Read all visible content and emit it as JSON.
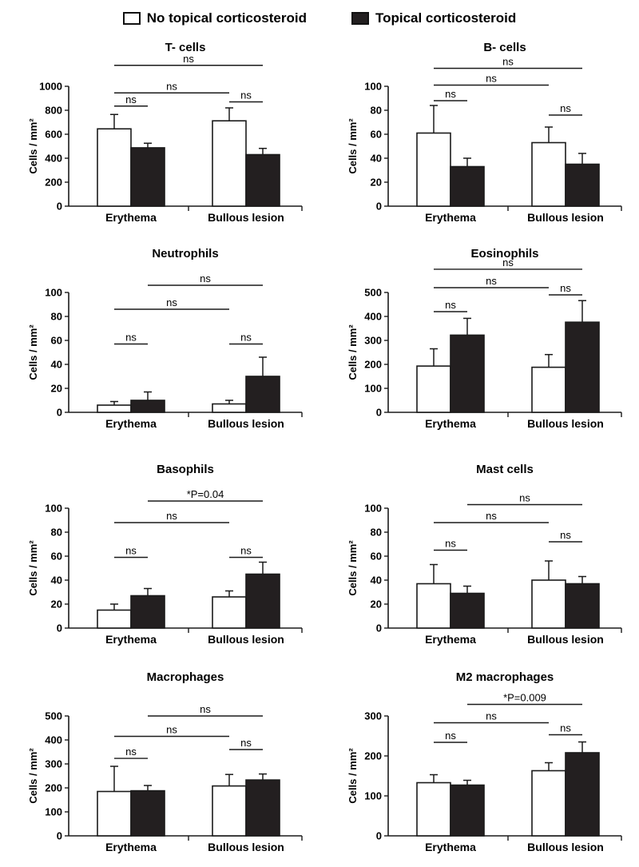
{
  "legend": {
    "items": [
      {
        "label": "No topical corticosteroid",
        "color": "#ffffff"
      },
      {
        "label": "Topical corticosteroid",
        "color": "#231f20"
      }
    ]
  },
  "colors": {
    "open_bar": "#ffffff",
    "filled_bar": "#231f20",
    "stroke": "#1a1a1a"
  },
  "chart_data": [
    {
      "type": "bar",
      "title": "T- cells",
      "ylabel": "Cells / mm²",
      "ylim": [
        0,
        1000
      ],
      "yticks": [
        0,
        200,
        400,
        600,
        800,
        1000
      ],
      "categories": [
        "Erythema",
        "Bullous lesion"
      ],
      "series": [
        {
          "name": "No topical corticosteroid",
          "values": [
            645,
            712
          ],
          "error": [
            120,
            108
          ]
        },
        {
          "name": "Topical corticosteroid",
          "values": [
            487,
            430
          ],
          "error": [
            38,
            52
          ]
        }
      ],
      "annotations": [
        {
          "text": "ns",
          "from": [
            0,
            0
          ],
          "to": [
            1,
            0
          ],
          "level": 945
        },
        {
          "text": "ns",
          "from": [
            0,
            0
          ],
          "to": [
            1,
            1
          ],
          "level": 1175
        },
        {
          "text": "ns",
          "from": [
            0,
            0
          ],
          "to": [
            0,
            1
          ],
          "level": 835
        },
        {
          "text": "ns",
          "from": [
            1,
            0
          ],
          "to": [
            1,
            1
          ],
          "level": 870
        }
      ]
    },
    {
      "type": "bar",
      "title": "B- cells",
      "ylabel": "Cells / mm²",
      "ylim": [
        0,
        100
      ],
      "yticks": [
        0,
        20,
        40,
        60,
        80,
        100
      ],
      "categories": [
        "Erythema",
        "Bullous lesion"
      ],
      "series": [
        {
          "name": "No topical corticosteroid",
          "values": [
            61,
            53
          ],
          "error": [
            23,
            13
          ]
        },
        {
          "name": "Topical corticosteroid",
          "values": [
            33,
            35
          ],
          "error": [
            7,
            9
          ]
        }
      ],
      "annotations": [
        {
          "text": "ns",
          "from": [
            0,
            0
          ],
          "to": [
            1,
            0
          ],
          "level": 101
        },
        {
          "text": "ns",
          "from": [
            0,
            0
          ],
          "to": [
            1,
            1
          ],
          "level": 115
        },
        {
          "text": "ns",
          "from": [
            0,
            0
          ],
          "to": [
            0,
            1
          ],
          "level": 88
        },
        {
          "text": "ns",
          "from": [
            1,
            0
          ],
          "to": [
            1,
            1
          ],
          "level": 76
        }
      ]
    },
    {
      "type": "bar",
      "title": "Neutrophils",
      "ylabel": "Cells / mm²",
      "ylim": [
        0,
        100
      ],
      "yticks": [
        0,
        20,
        40,
        60,
        80,
        100
      ],
      "categories": [
        "Erythema",
        "Bullous lesion"
      ],
      "series": [
        {
          "name": "No topical corticosteroid",
          "values": [
            6,
            7
          ],
          "error": [
            3,
            3
          ]
        },
        {
          "name": "Topical corticosteroid",
          "values": [
            10,
            30
          ],
          "error": [
            7,
            16
          ]
        }
      ],
      "annotations": [
        {
          "text": "ns",
          "from": [
            0,
            0
          ],
          "to": [
            1,
            0
          ],
          "level": 86
        },
        {
          "text": "ns",
          "from": [
            0,
            1
          ],
          "to": [
            1,
            1
          ],
          "level": 106
        },
        {
          "text": "ns",
          "from": [
            0,
            0
          ],
          "to": [
            0,
            1
          ],
          "level": 57
        },
        {
          "text": "ns",
          "from": [
            1,
            0
          ],
          "to": [
            1,
            1
          ],
          "level": 57
        }
      ]
    },
    {
      "type": "bar",
      "title": "Eosinophils",
      "ylabel": "Cells / mm²",
      "ylim": [
        0,
        500
      ],
      "yticks": [
        0,
        100,
        200,
        300,
        400,
        500
      ],
      "categories": [
        "Erythema",
        "Bullous lesion"
      ],
      "series": [
        {
          "name": "No topical corticosteroid",
          "values": [
            193,
            188
          ],
          "error": [
            72,
            53
          ]
        },
        {
          "name": "Topical corticosteroid",
          "values": [
            322,
            376
          ],
          "error": [
            70,
            90
          ]
        }
      ],
      "annotations": [
        {
          "text": "ns",
          "from": [
            0,
            0
          ],
          "to": [
            1,
            0
          ],
          "level": 520
        },
        {
          "text": "ns",
          "from": [
            0,
            0
          ],
          "to": [
            1,
            1
          ],
          "level": 597
        },
        {
          "text": "ns",
          "from": [
            0,
            0
          ],
          "to": [
            0,
            1
          ],
          "level": 420
        },
        {
          "text": "ns",
          "from": [
            1,
            0
          ],
          "to": [
            1,
            1
          ],
          "level": 490
        }
      ]
    },
    {
      "type": "bar",
      "title": "Basophils",
      "ylabel": "Cells / mm²",
      "ylim": [
        0,
        100
      ],
      "yticks": [
        0,
        20,
        40,
        60,
        80,
        100
      ],
      "categories": [
        "Erythema",
        "Bullous lesion"
      ],
      "series": [
        {
          "name": "No topical corticosteroid",
          "values": [
            15,
            26
          ],
          "error": [
            5,
            5
          ]
        },
        {
          "name": "Topical corticosteroid",
          "values": [
            27,
            45
          ],
          "error": [
            6,
            10
          ]
        }
      ],
      "annotations": [
        {
          "text": "ns",
          "from": [
            0,
            0
          ],
          "to": [
            1,
            0
          ],
          "level": 88
        },
        {
          "text": "*P=0.04",
          "from": [
            0,
            1
          ],
          "to": [
            1,
            1
          ],
          "level": 106
        },
        {
          "text": "ns",
          "from": [
            0,
            0
          ],
          "to": [
            0,
            1
          ],
          "level": 59
        },
        {
          "text": "ns",
          "from": [
            1,
            0
          ],
          "to": [
            1,
            1
          ],
          "level": 59
        }
      ]
    },
    {
      "type": "bar",
      "title": "Mast cells",
      "ylabel": "Cells / mm²",
      "ylim": [
        0,
        100
      ],
      "yticks": [
        0,
        20,
        40,
        60,
        80,
        100
      ],
      "categories": [
        "Erythema",
        "Bullous lesion"
      ],
      "series": [
        {
          "name": "No topical corticosteroid",
          "values": [
            37,
            40
          ],
          "error": [
            16,
            16
          ]
        },
        {
          "name": "Topical corticosteroid",
          "values": [
            29,
            37
          ],
          "error": [
            6,
            6
          ]
        }
      ],
      "annotations": [
        {
          "text": "ns",
          "from": [
            0,
            0
          ],
          "to": [
            1,
            0
          ],
          "level": 88
        },
        {
          "text": "ns",
          "from": [
            0,
            1
          ],
          "to": [
            1,
            1
          ],
          "level": 103
        },
        {
          "text": "ns",
          "from": [
            0,
            0
          ],
          "to": [
            0,
            1
          ],
          "level": 65
        },
        {
          "text": "ns",
          "from": [
            1,
            0
          ],
          "to": [
            1,
            1
          ],
          "level": 72
        }
      ]
    },
    {
      "type": "bar",
      "title": "Macrophages",
      "ylabel": "Cells / mm²",
      "ylim": [
        0,
        500
      ],
      "yticks": [
        0,
        100,
        200,
        300,
        400,
        500
      ],
      "categories": [
        "Erythema",
        "Bullous lesion"
      ],
      "series": [
        {
          "name": "No topical corticosteroid",
          "values": [
            185,
            208
          ],
          "error": [
            105,
            48
          ]
        },
        {
          "name": "Topical corticosteroid",
          "values": [
            188,
            233
          ],
          "error": [
            22,
            25
          ]
        }
      ],
      "annotations": [
        {
          "text": "ns",
          "from": [
            0,
            0
          ],
          "to": [
            1,
            0
          ],
          "level": 415
        },
        {
          "text": "ns",
          "from": [
            0,
            1
          ],
          "to": [
            1,
            1
          ],
          "level": 500
        },
        {
          "text": "ns",
          "from": [
            0,
            0
          ],
          "to": [
            0,
            1
          ],
          "level": 323
        },
        {
          "text": "ns",
          "from": [
            1,
            0
          ],
          "to": [
            1,
            1
          ],
          "level": 360
        }
      ]
    },
    {
      "type": "bar",
      "title": "M2 macrophages",
      "ylabel": "Cells / mm²",
      "ylim": [
        0,
        300
      ],
      "yticks": [
        0,
        100,
        200,
        300
      ],
      "categories": [
        "Erythema",
        "Bullous lesion"
      ],
      "series": [
        {
          "name": "No topical corticosteroid",
          "values": [
            133,
            163
          ],
          "error": [
            20,
            20
          ]
        },
        {
          "name": "Topical corticosteroid",
          "values": [
            127,
            208
          ],
          "error": [
            12,
            27
          ]
        }
      ],
      "annotations": [
        {
          "text": "ns",
          "from": [
            0,
            0
          ],
          "to": [
            1,
            0
          ],
          "level": 283
        },
        {
          "text": "*P=0.009",
          "from": [
            0,
            1
          ],
          "to": [
            1,
            1
          ],
          "level": 329
        },
        {
          "text": "ns",
          "from": [
            0,
            0
          ],
          "to": [
            0,
            1
          ],
          "level": 234
        },
        {
          "text": "ns",
          "from": [
            1,
            0
          ],
          "to": [
            1,
            1
          ],
          "level": 253
        }
      ]
    }
  ]
}
